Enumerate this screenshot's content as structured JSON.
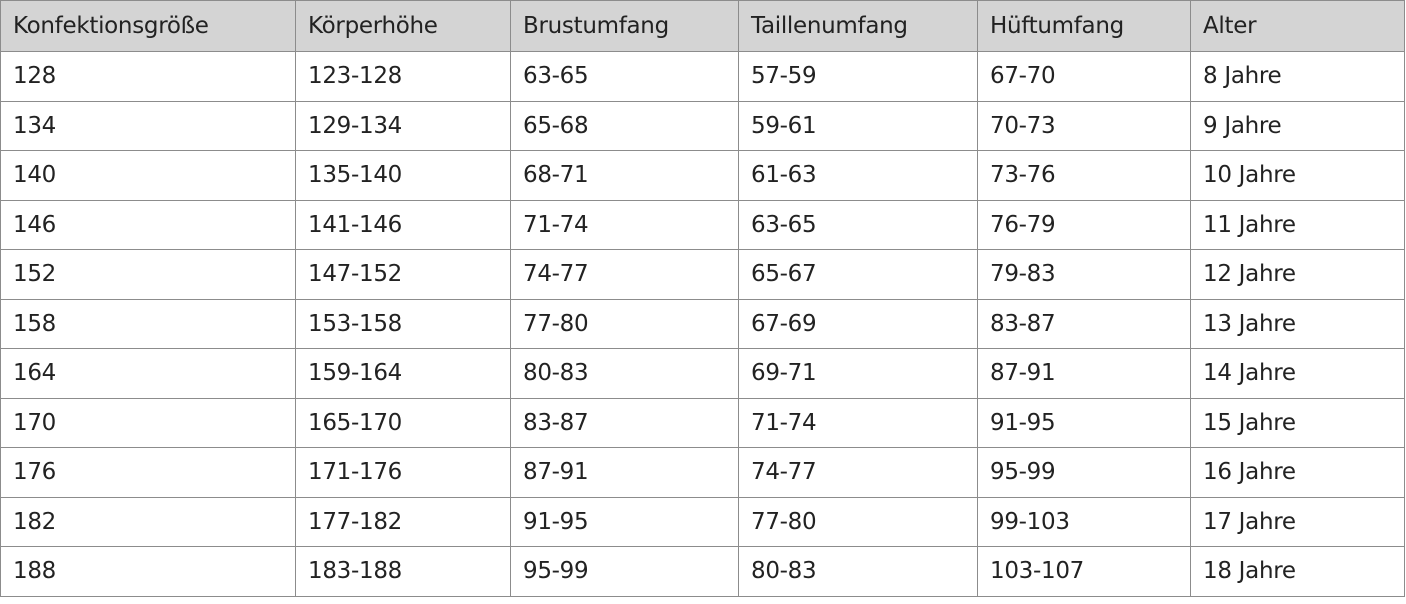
{
  "headers": [
    "Konfektionsgröße",
    "Körperhöhe",
    "Brustumfang",
    "Taillenumfang",
    "Hüftumfang",
    "Alter"
  ],
  "rows": [
    [
      "128",
      "123-128",
      "63-65",
      "57-59",
      "67-70",
      "8 Jahre"
    ],
    [
      "134",
      "129-134",
      "65-68",
      "59-61",
      "70-73",
      "9 Jahre"
    ],
    [
      "140",
      "135-140",
      "68-71",
      "61-63",
      "73-76",
      "10 Jahre"
    ],
    [
      "146",
      "141-146",
      "71-74",
      "63-65",
      "76-79",
      "11 Jahre"
    ],
    [
      "152",
      "147-152",
      "74-77",
      "65-67",
      "79-83",
      "12 Jahre"
    ],
    [
      "158",
      "153-158",
      "77-80",
      "67-69",
      "83-87",
      "13 Jahre"
    ],
    [
      "164",
      "159-164",
      "80-83",
      "69-71",
      "87-91",
      "14 Jahre"
    ],
    [
      "170",
      "165-170",
      "83-87",
      "71-74",
      "91-95",
      "15 Jahre"
    ],
    [
      "176",
      "171-176",
      "87-91",
      "74-77",
      "95-99",
      "16 Jahre"
    ],
    [
      "182",
      "177-182",
      "91-95",
      "77-80",
      "99-103",
      "17 Jahre"
    ],
    [
      "188",
      "183-188",
      "95-99",
      "80-83",
      "103-107",
      "18 Jahre"
    ]
  ],
  "colors": {
    "header_bg": "#d4d4d4",
    "border": "#8c8c8c",
    "text": "#222222"
  }
}
